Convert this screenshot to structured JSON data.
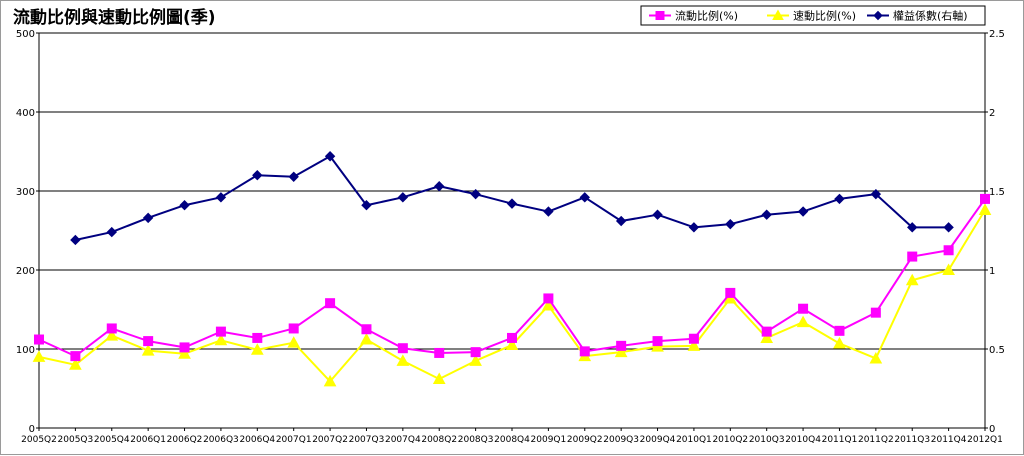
{
  "chart_data": {
    "type": "line",
    "title": "流動比例與速動比例圖(季)",
    "categories": [
      "2005Q2",
      "2005Q3",
      "2005Q4",
      "2006Q1",
      "2006Q2",
      "2006Q3",
      "2006Q4",
      "2007Q1",
      "2007Q2",
      "2007Q3",
      "2007Q4",
      "2008Q2",
      "2008Q3",
      "2008Q4",
      "2009Q1",
      "2009Q2",
      "2009Q3",
      "2009Q4",
      "2010Q1",
      "2010Q2",
      "2010Q3",
      "2010Q4",
      "2011Q1",
      "2011Q2",
      "2011Q3",
      "2011Q4",
      "2012Q1"
    ],
    "y_left": {
      "ticks": [
        0,
        100,
        200,
        300,
        400,
        500
      ],
      "ylim": [
        0,
        500
      ]
    },
    "y_right": {
      "ticks": [
        "0",
        "0.5",
        "1",
        "1.5",
        "2",
        "2.5"
      ],
      "ylim": [
        0,
        2.5
      ]
    },
    "grid": true,
    "legend_position": "top-right",
    "series": [
      {
        "name": "流動比例(%)",
        "axis": "left",
        "color": "#ff00ff",
        "marker": "square",
        "values": [
          112,
          91,
          126,
          110,
          102,
          122,
          114,
          126,
          158,
          125,
          101,
          95,
          96,
          114,
          164,
          97,
          104,
          110,
          113,
          171,
          122,
          151,
          123,
          146,
          217,
          225,
          290
        ]
      },
      {
        "name": "速動比例(%)",
        "axis": "left",
        "color": "#ffff00",
        "marker": "triangle",
        "values": [
          90,
          80,
          117,
          98,
          94,
          111,
          99,
          108,
          59,
          112,
          85,
          62,
          85,
          105,
          155,
          91,
          96,
          103,
          104,
          164,
          114,
          134,
          107,
          88,
          187,
          200,
          276
        ]
      },
      {
        "name": "權益係數(右軸)",
        "axis": "right",
        "color": "#000080",
        "marker": "diamond",
        "values": [
          null,
          1.19,
          1.24,
          1.33,
          1.41,
          1.46,
          1.6,
          1.59,
          1.72,
          1.41,
          1.46,
          1.53,
          1.48,
          1.42,
          1.37,
          1.46,
          1.31,
          1.35,
          1.27,
          1.29,
          1.35,
          1.37,
          1.45,
          1.48,
          1.27,
          1.27,
          null
        ]
      }
    ]
  }
}
